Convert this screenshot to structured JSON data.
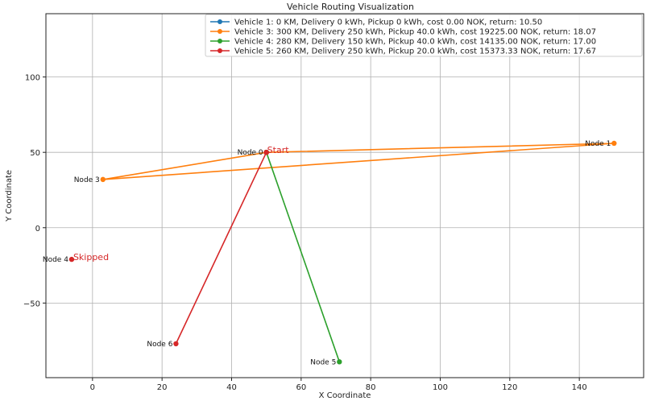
{
  "chart_data": {
    "type": "line",
    "title": "Vehicle Routing Visualization",
    "xlabel": "X Coordinate",
    "ylabel": "Y Coordinate",
    "xlim": [
      -13.4,
      158.5
    ],
    "ylim": [
      -99.5,
      142
    ],
    "xticks": [
      0,
      20,
      40,
      60,
      80,
      100,
      120,
      140
    ],
    "yticks": [
      -50,
      0,
      50,
      100
    ],
    "grid": true,
    "legend_position": "top-right",
    "nodes": [
      {
        "id": "node-0",
        "label": "Node 0",
        "x": 50,
        "y": 50
      },
      {
        "id": "node-1",
        "label": "Node 1",
        "x": 150,
        "y": 56
      },
      {
        "id": "node-3",
        "label": "Node 3",
        "x": 3,
        "y": 32
      },
      {
        "id": "node-4",
        "label": "Node 4",
        "x": -6,
        "y": -21
      },
      {
        "id": "node-5",
        "label": "Node 5",
        "x": 71,
        "y": -89
      },
      {
        "id": "node-6",
        "label": "Node 6",
        "x": 24,
        "y": -77
      }
    ],
    "annotations": [
      {
        "id": "start",
        "text": "Start",
        "x": 50,
        "y": 50,
        "color": "#d62728"
      },
      {
        "id": "skipped",
        "text": "Skipped",
        "x": -6,
        "y": -21,
        "color": "#d62728"
      }
    ],
    "series": [
      {
        "name": "Vehicle 1: 0 KM, Delivery 0 kWh, Pickup 0 kWh, cost 0.00 NOK, return: 10.50",
        "color": "#1f77b4",
        "points": [
          [
            50,
            50
          ],
          [
            50,
            50
          ]
        ]
      },
      {
        "name": "Vehicle 3: 300 KM, Delivery 250 kWh, Pickup 40.0 kWh, cost 19225.00 NOK, return: 18.07",
        "color": "#ff7f0e",
        "points": [
          [
            50,
            50
          ],
          [
            150,
            56
          ],
          [
            3,
            32
          ],
          [
            50,
            50
          ]
        ]
      },
      {
        "name": "Vehicle 4: 280 KM, Delivery 150 kWh, Pickup 40.0 kWh, cost 14135.00 NOK, return: 17.00",
        "color": "#2ca02c",
        "points": [
          [
            50,
            50
          ],
          [
            71,
            -89
          ],
          [
            50,
            50
          ]
        ]
      },
      {
        "name": "Vehicle 5: 260 KM, Delivery 250 kWh, Pickup 20.0 kWh, cost 15373.33 NOK, return: 17.67",
        "color": "#d62728",
        "points": [
          [
            50,
            50
          ],
          [
            24,
            -77
          ],
          [
            50,
            50
          ]
        ]
      }
    ]
  }
}
